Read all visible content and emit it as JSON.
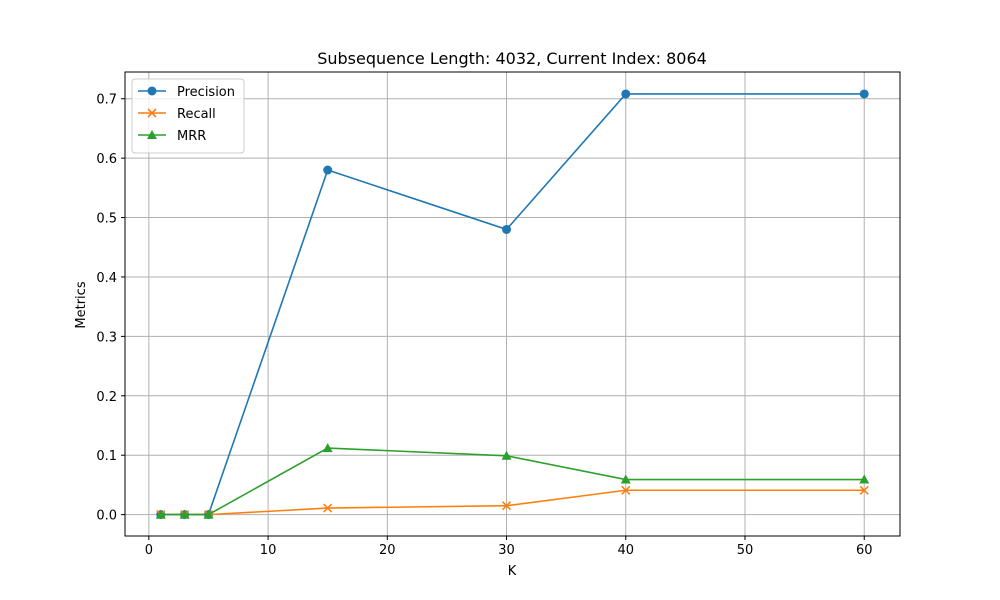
{
  "chart_data": {
    "type": "line",
    "title": "Subsequence Length: 4032, Current Index: 8064",
    "xlabel": "K",
    "ylabel": "Metrics",
    "x": [
      1,
      3,
      5,
      15,
      30,
      40,
      60
    ],
    "xlim": [
      -2,
      63
    ],
    "ylim": [
      -0.036,
      0.745
    ],
    "xticks": [
      0,
      10,
      20,
      30,
      40,
      50,
      60
    ],
    "yticks": [
      0.0,
      0.1,
      0.2,
      0.3,
      0.4,
      0.5,
      0.6,
      0.7
    ],
    "xtick_labels": [
      "0",
      "10",
      "20",
      "30",
      "40",
      "50",
      "60"
    ],
    "ytick_labels": [
      "0.0",
      "0.1",
      "0.2",
      "0.3",
      "0.4",
      "0.5",
      "0.6",
      "0.7"
    ],
    "grid": true,
    "legend_position": "top-left",
    "series": [
      {
        "name": "Precision",
        "color": "#1f77b4",
        "marker": "circle",
        "values": [
          0.0,
          0.0,
          0.0,
          0.58,
          0.48,
          0.708,
          0.708
        ]
      },
      {
        "name": "Recall",
        "color": "#ff7f0e",
        "marker": "x",
        "values": [
          0.0,
          0.0,
          0.0,
          0.011,
          0.015,
          0.041,
          0.041
        ]
      },
      {
        "name": "MRR",
        "color": "#2ca02c",
        "marker": "triangle",
        "values": [
          0.0,
          0.0,
          0.0,
          0.112,
          0.099,
          0.059,
          0.059
        ]
      }
    ]
  }
}
